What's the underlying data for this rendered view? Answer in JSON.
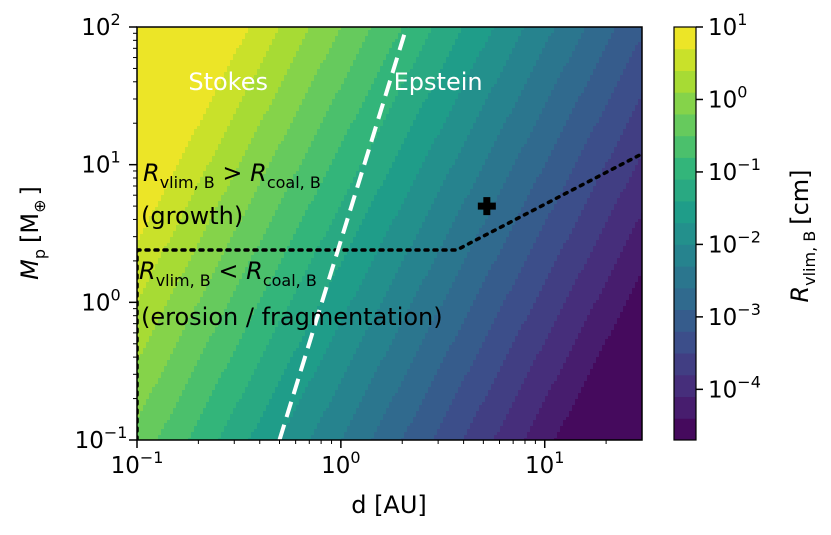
{
  "chart_data": {
    "type": "heatmap",
    "title": "",
    "xlabel": "d [AU]",
    "ylabel": "M_p [M_⊕]",
    "ylabel_parts": {
      "main": "M",
      "sub": "p",
      "unit": "[M",
      "unit_sub": "⊕",
      "close": "]"
    },
    "xscale": "log",
    "yscale": "log",
    "xlim": [
      0.1,
      30
    ],
    "ylim": [
      0.1,
      100
    ],
    "x_ticks": [
      {
        "base": "10",
        "exp": "−1",
        "value": 0.1
      },
      {
        "base": "10",
        "exp": "0",
        "value": 1
      },
      {
        "base": "10",
        "exp": "1",
        "value": 10
      }
    ],
    "y_ticks": [
      {
        "base": "10",
        "exp": "−1",
        "value": 0.1
      },
      {
        "base": "10",
        "exp": "0",
        "value": 1
      },
      {
        "base": "10",
        "exp": "1",
        "value": 10
      },
      {
        "base": "10",
        "exp": "2",
        "value": 100
      }
    ],
    "colorbar": {
      "label_main": "R",
      "label_sub": "vlim, B",
      "label_unit": "[cm]",
      "scale": "log",
      "range": [
        2e-05,
        10
      ],
      "ticks": [
        {
          "base": "10",
          "exp": "1",
          "value": 10
        },
        {
          "base": "10",
          "exp": "0",
          "value": 1
        },
        {
          "base": "10",
          "exp": "−1",
          "value": 0.1
        },
        {
          "base": "10",
          "exp": "−2",
          "value": 0.01
        },
        {
          "base": "10",
          "exp": "−3",
          "value": 0.001
        },
        {
          "base": "10",
          "exp": "−4",
          "value": 0.0001
        }
      ],
      "colormap": "viridis",
      "levels": 19
    },
    "field_model": {
      "log10_R_at_origin": -1.6,
      "slope_log_d": -2.0,
      "slope_log_Mp": 0.7
    },
    "boundary_line": {
      "name": "Stokes/Epstein boundary",
      "style": "dashed",
      "color": "#ffffff",
      "points": [
        {
          "x": 0.5,
          "y": 0.1
        },
        {
          "x": 2.1,
          "y": 100
        }
      ]
    },
    "threshold_line": {
      "style": "dotted",
      "color": "#000000",
      "points": [
        {
          "x": 0.1,
          "y": 2.4
        },
        {
          "x": 3.7,
          "y": 2.4
        },
        {
          "x": 30,
          "y": 12
        }
      ]
    },
    "left_edge_line": {
      "style": "dotted",
      "color": "#000000",
      "points": [
        {
          "x": 0.1,
          "y": 0.1
        },
        {
          "x": 0.1,
          "y": 2.4
        }
      ]
    },
    "marker": {
      "symbol": "plus",
      "x": 5.2,
      "y": 5.0,
      "color": "#000000"
    },
    "regions": [
      {
        "label": "Stokes",
        "x": 0.28,
        "y": 40,
        "color": "#ffffff"
      },
      {
        "label": "Epstein",
        "x": 3.0,
        "y": 40,
        "color": "#ffffff"
      }
    ],
    "annotations": {
      "upper": {
        "R": "R",
        "sub1": "vlim, B",
        "op": " > ",
        "R2": "R",
        "sub2": "coal, B",
        "note": "(growth)"
      },
      "lower": {
        "R": "R",
        "sub1": "vlim, B",
        "op": " < ",
        "R2": "R",
        "sub2": "coal, B",
        "note": "(erosion / fragmentation)"
      }
    }
  }
}
